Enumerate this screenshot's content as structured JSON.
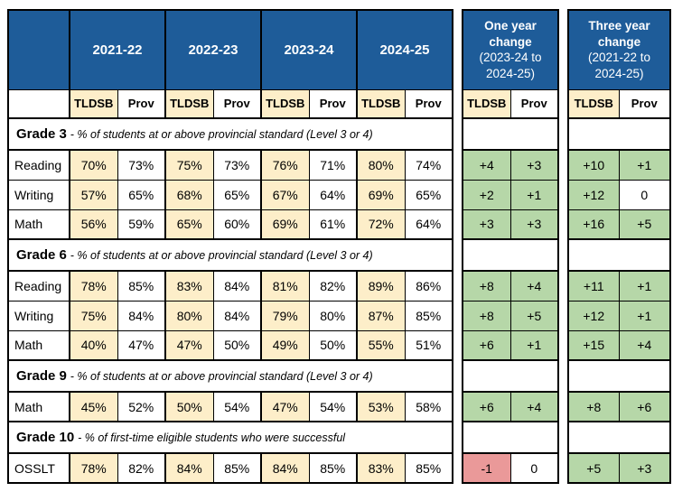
{
  "colors": {
    "header_blue": "#1e5c99",
    "tldsb_tan": "#fdeec9",
    "positive_green": "#b6d7a8",
    "negative_red": "#ea9999",
    "border_black": "#000000",
    "background_white": "#ffffff"
  },
  "labels": {
    "tldsb": "TLDSB",
    "prov": "Prov"
  },
  "panels": [
    {
      "title": "One year change",
      "subtitle": "(2023-24 to 2024-25)"
    },
    {
      "title": "Three year change",
      "subtitle": "(2021-22 to 2024-25)"
    }
  ],
  "main_table": {
    "years": [
      "2021-22",
      "2022-23",
      "2023-24",
      "2024-25"
    ],
    "sections": [
      {
        "title": "Grade 3",
        "description": "- % of students at or above provincial standard (Level 3 or 4)",
        "rows": [
          {
            "label": "Reading",
            "values": [
              "70%",
              "73%",
              "75%",
              "73%",
              "76%",
              "71%",
              "80%",
              "74%"
            ],
            "one_year": [
              "+4",
              "+3"
            ],
            "three_year": [
              "+10",
              "+1"
            ]
          },
          {
            "label": "Writing",
            "values": [
              "57%",
              "65%",
              "68%",
              "65%",
              "67%",
              "64%",
              "69%",
              "65%"
            ],
            "one_year": [
              "+2",
              "+1"
            ],
            "three_year": [
              "+12",
              "0"
            ]
          },
          {
            "label": "Math",
            "values": [
              "56%",
              "59%",
              "65%",
              "60%",
              "69%",
              "61%",
              "72%",
              "64%"
            ],
            "one_year": [
              "+3",
              "+3"
            ],
            "three_year": [
              "+16",
              "+5"
            ]
          }
        ]
      },
      {
        "title": "Grade 6",
        "description": "- % of students at or above provincial standard (Level 3 or 4)",
        "rows": [
          {
            "label": "Reading",
            "values": [
              "78%",
              "85%",
              "83%",
              "84%",
              "81%",
              "82%",
              "89%",
              "86%"
            ],
            "one_year": [
              "+8",
              "+4"
            ],
            "three_year": [
              "+11",
              "+1"
            ]
          },
          {
            "label": "Writing",
            "values": [
              "75%",
              "84%",
              "80%",
              "84%",
              "79%",
              "80%",
              "87%",
              "85%"
            ],
            "one_year": [
              "+8",
              "+5"
            ],
            "three_year": [
              "+12",
              "+1"
            ]
          },
          {
            "label": "Math",
            "values": [
              "40%",
              "47%",
              "47%",
              "50%",
              "49%",
              "50%",
              "55%",
              "51%"
            ],
            "one_year": [
              "+6",
              "+1"
            ],
            "three_year": [
              "+15",
              "+4"
            ]
          }
        ]
      },
      {
        "title": "Grade 9",
        "description": "- % of students at or above provincial standard (Level 3 or 4)",
        "rows": [
          {
            "label": "Math",
            "values": [
              "45%",
              "52%",
              "50%",
              "54%",
              "47%",
              "54%",
              "53%",
              "58%"
            ],
            "one_year": [
              "+6",
              "+4"
            ],
            "three_year": [
              "+8",
              "+6"
            ]
          }
        ]
      },
      {
        "title": "Grade 10",
        "description": "- % of first-time eligible students who were successful",
        "rows": [
          {
            "label": "OSSLT",
            "values": [
              "78%",
              "82%",
              "84%",
              "85%",
              "84%",
              "85%",
              "83%",
              "85%"
            ],
            "one_year": [
              "-1",
              "0"
            ],
            "three_year": [
              "+5",
              "+3"
            ]
          }
        ]
      }
    ]
  }
}
